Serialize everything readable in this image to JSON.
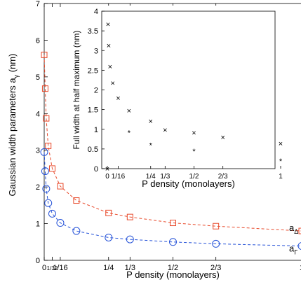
{
  "chart_data": [
    {
      "type": "line",
      "title": "",
      "xlabel": "P density (monolayers)",
      "ylabel": "Gaussian width parameters a",
      "ylabel_sub": "γ",
      "ylabel_unit": "(nm)",
      "xlim": [
        0,
        1
      ],
      "ylim": [
        0,
        7
      ],
      "grid": false,
      "xticks": [
        {
          "value": 0,
          "label": "0"
        },
        {
          "value": 0.03125,
          "label": "1/32"
        },
        {
          "value": 0.0625,
          "label": "1/16"
        },
        {
          "value": 0.25,
          "label": "1/4"
        },
        {
          "value": 0.3333,
          "label": "1/3"
        },
        {
          "value": 0.5,
          "label": "1/2"
        },
        {
          "value": 0.6667,
          "label": "2/3"
        },
        {
          "value": 1,
          "label": "1"
        }
      ],
      "yticks": [
        0,
        1,
        2,
        3,
        4,
        5,
        6,
        7
      ],
      "series": [
        {
          "name": "a",
          "name_sub": "Δ",
          "color": "#e8492a",
          "marker": "square",
          "x": [
            0.0,
            0.0039,
            0.0078,
            0.0156,
            0.03125,
            0.0625,
            0.125,
            0.25,
            0.3333,
            0.5,
            0.6667,
            1.0
          ],
          "y": [
            5.6,
            4.68,
            3.87,
            3.12,
            2.5,
            2.02,
            1.63,
            1.29,
            1.18,
            1.02,
            0.93,
            0.8
          ]
        },
        {
          "name": "a",
          "name_sub": "Γ",
          "color": "#2552d8",
          "marker": "circle",
          "x": [
            0.0,
            0.0039,
            0.0078,
            0.0156,
            0.03125,
            0.0625,
            0.125,
            0.25,
            0.3333,
            0.5,
            0.6667,
            1.0
          ],
          "y": [
            2.95,
            2.43,
            1.95,
            1.56,
            1.27,
            1.02,
            0.8,
            0.62,
            0.57,
            0.5,
            0.45,
            0.39
          ]
        }
      ]
    },
    {
      "type": "scatter",
      "title": "",
      "xlabel": "P density (monolayers)",
      "ylabel": "Full width at half maximum (nm)",
      "xlim": [
        0,
        1
      ],
      "ylim": [
        0,
        4
      ],
      "grid": false,
      "xticks": [
        {
          "value": 0,
          "label": "0"
        },
        {
          "value": 0.0625,
          "label": "1/16"
        },
        {
          "value": 0.25,
          "label": "1/4"
        },
        {
          "value": 0.3333,
          "label": "1/3"
        },
        {
          "value": 0.5,
          "label": "1/2"
        },
        {
          "value": 0.6667,
          "label": "2/3"
        },
        {
          "value": 1,
          "label": "1"
        }
      ],
      "yticks": [
        0,
        0.5,
        1,
        1.5,
        2,
        2.5,
        3,
        3.5,
        4
      ],
      "series": [
        {
          "marker": "x",
          "x": [
            0.0,
            0.0039,
            0.0078,
            0.0156,
            0.03125,
            0.0625,
            0.125,
            0.25,
            0.3333,
            0.5,
            0.6667,
            1.0
          ],
          "y": [
            0.0,
            3.67,
            3.13,
            2.6,
            2.18,
            1.8,
            1.48,
            1.21,
            0.99,
            0.92,
            0.8,
            0.64
          ]
        },
        {
          "marker": "asterisk",
          "x": [
            0.125,
            0.25,
            0.5,
            1.0
          ],
          "y": [
            0.97,
            0.65,
            0.5,
            0.25
          ]
        }
      ]
    }
  ]
}
